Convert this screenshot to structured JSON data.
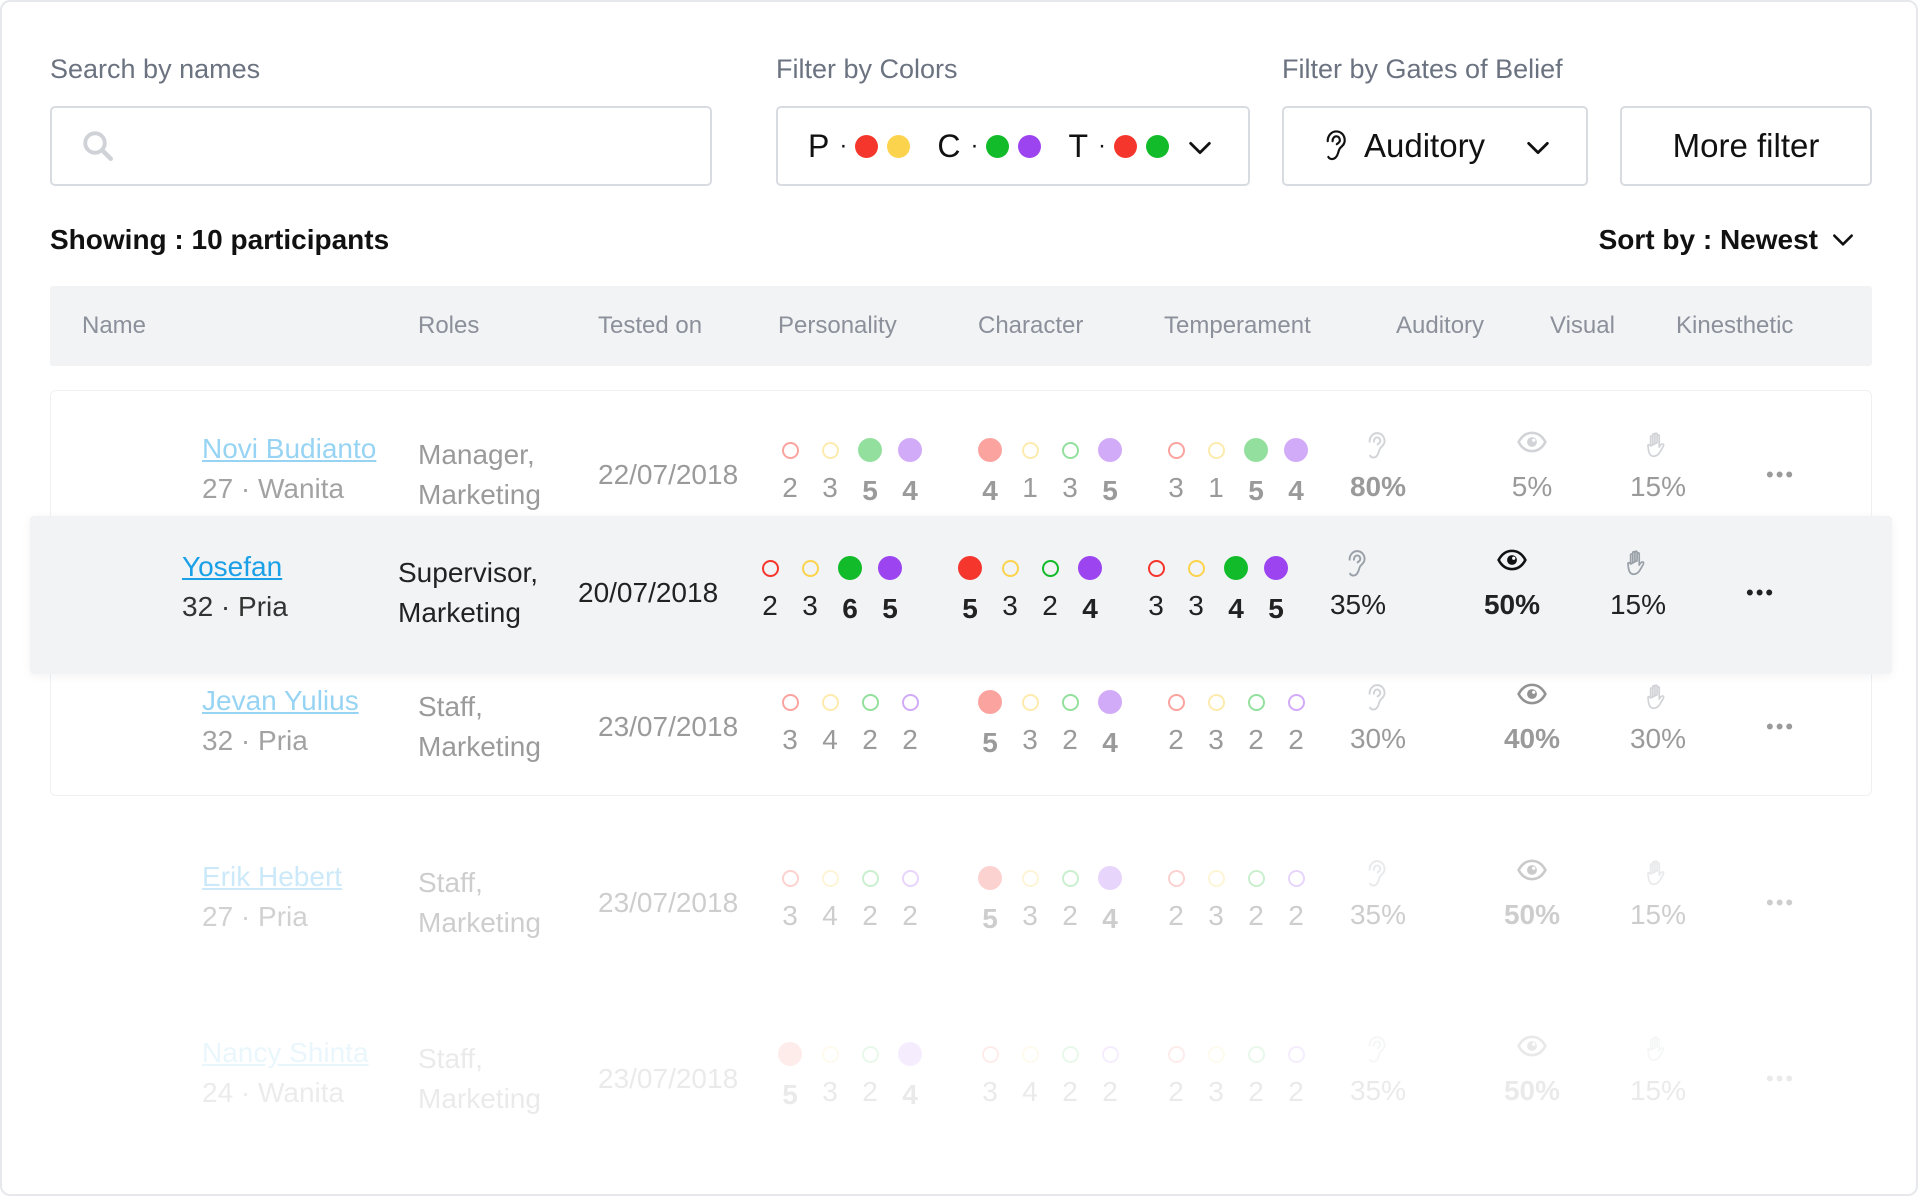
{
  "colors": {
    "red": "#f5362d",
    "yellow": "#fcd34d",
    "green": "#12bb2a",
    "purple": "#9b44f0",
    "link": "#1aa0e6",
    "text": "#1a1a1a",
    "muted": "#8b909a"
  },
  "filters": {
    "search_label": "Search by names",
    "search_placeholder": "",
    "colors_label": "Filter by Colors",
    "colors_value": [
      {
        "letter": "P",
        "dots": [
          "red",
          "yellow"
        ]
      },
      {
        "letter": "C",
        "dots": [
          "green",
          "purple"
        ]
      },
      {
        "letter": "T",
        "dots": [
          "red",
          "green"
        ]
      }
    ],
    "gates_label": "Filter by Gates of Belief",
    "gates_value": "Auditory",
    "gates_icon": "ear-icon",
    "more_filter": "More filter"
  },
  "summary": {
    "showing_prefix": "Showing :",
    "showing_count": "10 participants"
  },
  "sort": {
    "prefix": "Sort by :",
    "value": "Newest"
  },
  "table": {
    "columns": [
      "Name",
      "Roles",
      "Tested on",
      "Personality",
      "Character",
      "Temperament",
      "Auditory",
      "Visual",
      "Kinesthetic"
    ],
    "rows": [
      {
        "name": "Novi Budianto",
        "meta": "27 · Wanita",
        "roles": [
          "Manager,",
          "Marketing"
        ],
        "tested_on": "22/07/2018",
        "opacity": 0.45,
        "highlighted": false,
        "personality": [
          {
            "color": "red",
            "size": "sm",
            "v": "2"
          },
          {
            "color": "yellow",
            "size": "sm",
            "v": "3"
          },
          {
            "color": "green",
            "size": "lg",
            "v": "5",
            "bold": true
          },
          {
            "color": "purple",
            "size": "lg",
            "v": "4",
            "bold": true
          }
        ],
        "character": [
          {
            "color": "red",
            "size": "lg",
            "v": "4",
            "bold": true
          },
          {
            "color": "yellow",
            "size": "sm",
            "v": "1"
          },
          {
            "color": "green",
            "size": "sm",
            "v": "3"
          },
          {
            "color": "purple",
            "size": "lg",
            "v": "5",
            "bold": true
          }
        ],
        "temperament": [
          {
            "color": "red",
            "size": "sm",
            "v": "3"
          },
          {
            "color": "yellow",
            "size": "sm",
            "v": "1"
          },
          {
            "color": "green",
            "size": "lg",
            "v": "5",
            "bold": true
          },
          {
            "color": "purple",
            "size": "lg",
            "v": "4",
            "bold": true
          }
        ],
        "auditory": {
          "v": "80%",
          "bold": true,
          "icon": "ear-icon"
        },
        "visual": {
          "v": "5%",
          "bold": false,
          "icon": "eye-icon"
        },
        "kinesthetic": {
          "v": "15%",
          "bold": false,
          "icon": "hand-icon"
        }
      },
      {
        "name": "Yosefan",
        "meta": "32 · Pria",
        "roles": [
          "Supervisor,",
          "Marketing"
        ],
        "tested_on": "20/07/2018",
        "opacity": 1,
        "highlighted": true,
        "personality": [
          {
            "color": "red",
            "size": "sm",
            "v": "2"
          },
          {
            "color": "yellow",
            "size": "sm",
            "v": "3"
          },
          {
            "color": "green",
            "size": "lg",
            "v": "6",
            "bold": true
          },
          {
            "color": "purple",
            "size": "lg",
            "v": "5",
            "bold": true
          }
        ],
        "character": [
          {
            "color": "red",
            "size": "lg",
            "v": "5",
            "bold": true
          },
          {
            "color": "yellow",
            "size": "sm",
            "v": "3"
          },
          {
            "color": "green",
            "size": "sm",
            "v": "2"
          },
          {
            "color": "purple",
            "size": "lg",
            "v": "4",
            "bold": true
          }
        ],
        "temperament": [
          {
            "color": "red",
            "size": "sm",
            "v": "3"
          },
          {
            "color": "yellow",
            "size": "sm",
            "v": "3"
          },
          {
            "color": "green",
            "size": "lg",
            "v": "4",
            "bold": true
          },
          {
            "color": "purple",
            "size": "lg",
            "v": "5",
            "bold": true
          }
        ],
        "auditory": {
          "v": "35%",
          "bold": false,
          "icon": "ear-icon"
        },
        "visual": {
          "v": "50%",
          "bold": true,
          "icon": "eye-icon"
        },
        "kinesthetic": {
          "v": "15%",
          "bold": false,
          "icon": "hand-icon"
        }
      },
      {
        "name": "Jevan Yulius",
        "meta": "32 · Pria",
        "roles": [
          "Staff,",
          "Marketing"
        ],
        "tested_on": "23/07/2018",
        "opacity": 0.45,
        "highlighted": false,
        "personality": [
          {
            "color": "red",
            "size": "sm",
            "v": "3"
          },
          {
            "color": "yellow",
            "size": "sm",
            "v": "4"
          },
          {
            "color": "green",
            "size": "sm",
            "v": "2"
          },
          {
            "color": "purple",
            "size": "sm",
            "v": "2"
          }
        ],
        "character": [
          {
            "color": "red",
            "size": "lg",
            "v": "5",
            "bold": true
          },
          {
            "color": "yellow",
            "size": "sm",
            "v": "3"
          },
          {
            "color": "green",
            "size": "sm",
            "v": "2"
          },
          {
            "color": "purple",
            "size": "lg",
            "v": "4",
            "bold": true
          }
        ],
        "temperament": [
          {
            "color": "red",
            "size": "sm",
            "v": "2"
          },
          {
            "color": "yellow",
            "size": "sm",
            "v": "3"
          },
          {
            "color": "green",
            "size": "sm",
            "v": "2"
          },
          {
            "color": "purple",
            "size": "sm",
            "v": "2"
          }
        ],
        "auditory": {
          "v": "30%",
          "bold": false,
          "icon": "ear-icon"
        },
        "visual": {
          "v": "40%",
          "bold": true,
          "icon": "eye-icon"
        },
        "kinesthetic": {
          "v": "30%",
          "bold": false,
          "icon": "hand-icon"
        }
      },
      {
        "name": "Erik Hebert",
        "meta": "27 · Pria",
        "roles": [
          "Staff,",
          "Marketing"
        ],
        "tested_on": "23/07/2018",
        "opacity": 0.22,
        "highlighted": false,
        "personality": [
          {
            "color": "red",
            "size": "sm",
            "v": "3"
          },
          {
            "color": "yellow",
            "size": "sm",
            "v": "4"
          },
          {
            "color": "green",
            "size": "sm",
            "v": "2"
          },
          {
            "color": "purple",
            "size": "sm",
            "v": "2"
          }
        ],
        "character": [
          {
            "color": "red",
            "size": "lg",
            "v": "5",
            "bold": true
          },
          {
            "color": "yellow",
            "size": "sm",
            "v": "3"
          },
          {
            "color": "green",
            "size": "sm",
            "v": "2"
          },
          {
            "color": "purple",
            "size": "lg",
            "v": "4",
            "bold": true
          }
        ],
        "temperament": [
          {
            "color": "red",
            "size": "sm",
            "v": "2"
          },
          {
            "color": "yellow",
            "size": "sm",
            "v": "3"
          },
          {
            "color": "green",
            "size": "sm",
            "v": "2"
          },
          {
            "color": "purple",
            "size": "sm",
            "v": "2"
          }
        ],
        "auditory": {
          "v": "35%",
          "bold": false,
          "icon": "ear-icon"
        },
        "visual": {
          "v": "50%",
          "bold": true,
          "icon": "eye-icon"
        },
        "kinesthetic": {
          "v": "15%",
          "bold": false,
          "icon": "hand-icon"
        }
      },
      {
        "name": "Nancy Shinta",
        "meta": "24 · Wanita",
        "roles": [
          "Staff,",
          "Marketing"
        ],
        "tested_on": "23/07/2018",
        "opacity": 0.09,
        "highlighted": false,
        "personality": [
          {
            "color": "red",
            "size": "lg",
            "v": "5",
            "bold": true
          },
          {
            "color": "yellow",
            "size": "sm",
            "v": "3"
          },
          {
            "color": "green",
            "size": "sm",
            "v": "2"
          },
          {
            "color": "purple",
            "size": "lg",
            "v": "4",
            "bold": true
          }
        ],
        "character": [
          {
            "color": "red",
            "size": "sm",
            "v": "3"
          },
          {
            "color": "yellow",
            "size": "sm",
            "v": "4"
          },
          {
            "color": "green",
            "size": "sm",
            "v": "2"
          },
          {
            "color": "purple",
            "size": "sm",
            "v": "2"
          }
        ],
        "temperament": [
          {
            "color": "red",
            "size": "sm",
            "v": "2"
          },
          {
            "color": "yellow",
            "size": "sm",
            "v": "3"
          },
          {
            "color": "green",
            "size": "sm",
            "v": "2"
          },
          {
            "color": "purple",
            "size": "sm",
            "v": "2"
          }
        ],
        "auditory": {
          "v": "35%",
          "bold": false,
          "icon": "ear-icon"
        },
        "visual": {
          "v": "50%",
          "bold": true,
          "icon": "eye-icon"
        },
        "kinesthetic": {
          "v": "15%",
          "bold": false,
          "icon": "hand-icon"
        }
      }
    ]
  }
}
